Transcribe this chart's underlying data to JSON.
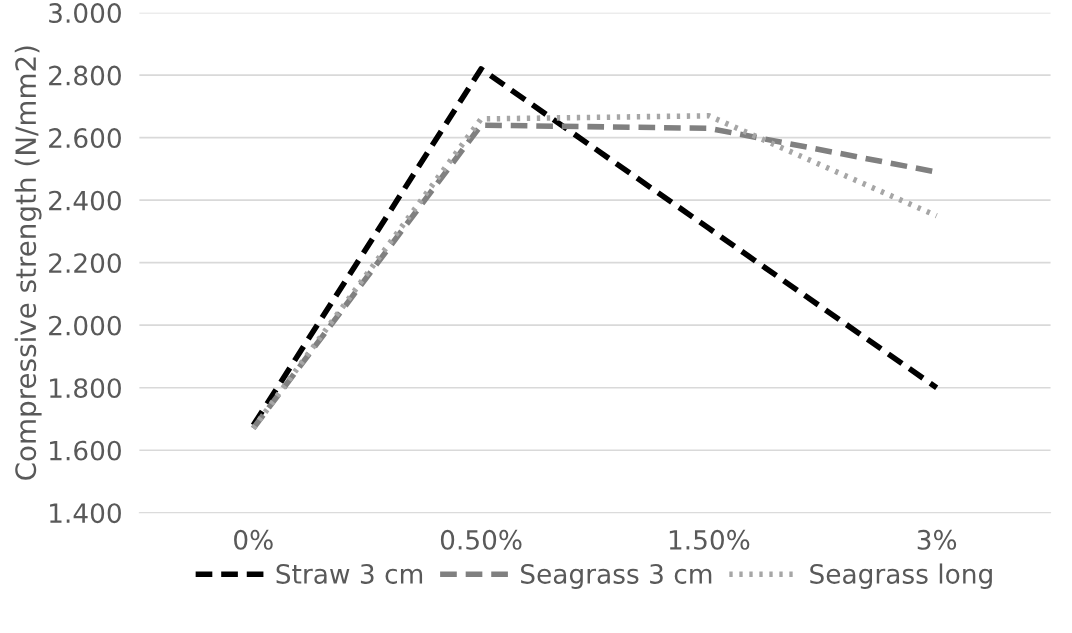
{
  "chart_data": {
    "type": "line",
    "ylabel": "Compressive strength (N/mm2)",
    "categories": [
      "0%",
      "0.50%",
      "1.50%",
      "3%"
    ],
    "series": [
      {
        "name": "Straw 3 cm",
        "color": "#000000",
        "line_style": "dashed",
        "values": [
          1.68,
          2.82,
          2.31,
          1.8
        ]
      },
      {
        "name": "Seagrass 3 cm",
        "color": "#808080",
        "line_style": "dashed",
        "values": [
          1.67,
          2.64,
          2.63,
          2.49
        ]
      },
      {
        "name": "Seagrass long",
        "color": "#a6a6a6",
        "line_style": "dotted",
        "values": [
          1.67,
          2.66,
          2.67,
          2.35
        ]
      }
    ],
    "ylim": [
      1.4,
      3.0
    ],
    "yticks": [
      {
        "value": 1.4,
        "label": "1.400"
      },
      {
        "value": 1.6,
        "label": "1.600"
      },
      {
        "value": 1.8,
        "label": "1.800"
      },
      {
        "value": 2.0,
        "label": "2.000"
      },
      {
        "value": 2.2,
        "label": "2.200"
      },
      {
        "value": 2.4,
        "label": "2.400"
      },
      {
        "value": 2.6,
        "label": "2.600"
      },
      {
        "value": 2.8,
        "label": "2.800"
      },
      {
        "value": 3.0,
        "label": "3.000"
      }
    ],
    "grid": "y",
    "legend": "bottom",
    "marker": "none"
  }
}
